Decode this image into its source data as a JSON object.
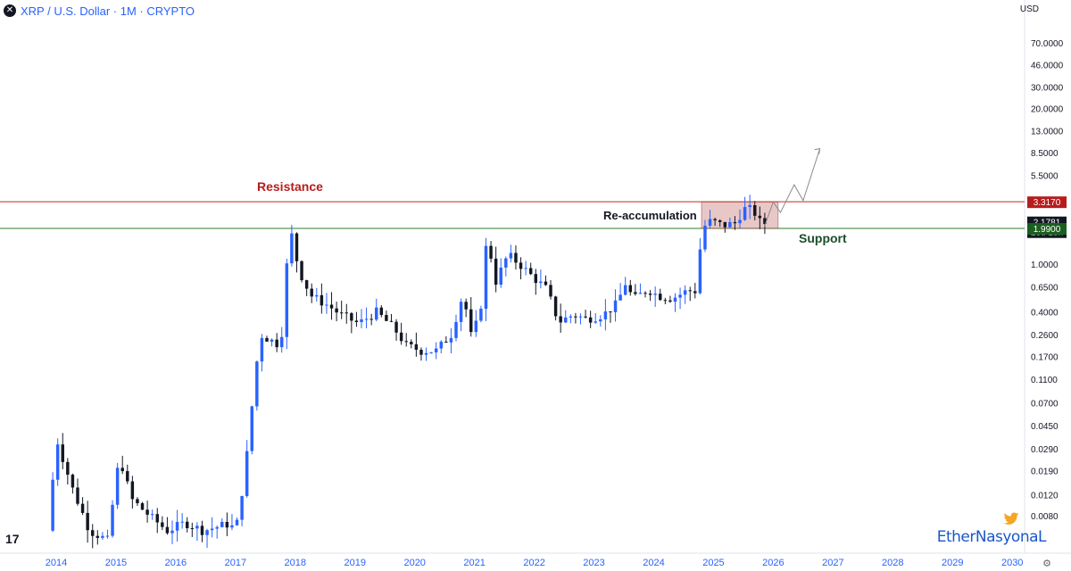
{
  "header": {
    "title": "XRP / U.S. Dollar · 1M · CRYPTO",
    "close_icon": "close-icon"
  },
  "currency": "USD",
  "brand": {
    "text": "EtherNasyonaL",
    "icon": "twitter-bird-icon",
    "color": "#f5a623"
  },
  "chart_data": {
    "type": "candlestick",
    "y_scale": "log",
    "ylim": [
      0.0065,
      85
    ],
    "x_ticks": [
      "2014",
      "2015",
      "2016",
      "2017",
      "2018",
      "2019",
      "2020",
      "2021",
      "2022",
      "2023",
      "2024",
      "2025",
      "2026",
      "2027",
      "2028",
      "2029",
      "2030"
    ],
    "y_ticks": [
      "70.0000",
      "46.0000",
      "30.0000",
      "20.0000",
      "13.0000",
      "8.5000",
      "5.5000",
      "1.0000",
      "0.6500",
      "0.4000",
      "0.2600",
      "0.1700",
      "0.1100",
      "0.0700",
      "0.0450",
      "0.0290",
      "0.0190",
      "0.0120",
      "0.0080"
    ],
    "price_tags": [
      {
        "label": "3.3170",
        "value": 3.317,
        "color": "#b71c1c"
      },
      {
        "label": "2.1781",
        "sub": "23d 13h",
        "value": 2.1781,
        "color": "#131722"
      },
      {
        "label": "1.9900",
        "value": 1.99,
        "color": "#1b5e20"
      }
    ],
    "levels": [
      {
        "name": "Resistance",
        "value": 3.317,
        "color": "#c62828"
      },
      {
        "name": "Support",
        "value": 1.99,
        "color": "#2e7d32"
      }
    ],
    "annotations": [
      "Resistance",
      "Re-accumulation",
      "Support"
    ],
    "colors": {
      "up": "#2962ff",
      "down": "#131722"
    },
    "candles_yearly_anchor": [
      {
        "year": 2014,
        "close": 0.0055
      },
      {
        "year": 2015,
        "close": 0.006
      },
      {
        "year": 2016,
        "close": 0.0065
      },
      {
        "year": 2017,
        "close": 2.3
      },
      {
        "year": 2018,
        "close": 0.36
      },
      {
        "year": 2019,
        "close": 0.19
      },
      {
        "year": 2020,
        "close": 0.22
      },
      {
        "year": 2021,
        "close": 0.83
      },
      {
        "year": 2022,
        "close": 0.34
      },
      {
        "year": 2023,
        "close": 0.62
      },
      {
        "year": 2024,
        "close": 2.1
      },
      {
        "year": 2025,
        "close": 2.1781
      }
    ]
  }
}
